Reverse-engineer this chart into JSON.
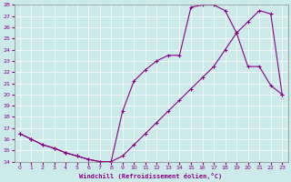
{
  "xlabel": "Windchill (Refroidissement éolien,°C)",
  "bg_color": "#cceaea",
  "line_color": "#880088",
  "xlim": [
    -0.5,
    23.5
  ],
  "ylim": [
    14,
    28
  ],
  "xticks": [
    0,
    1,
    2,
    3,
    4,
    5,
    6,
    7,
    8,
    9,
    10,
    11,
    12,
    13,
    14,
    15,
    16,
    17,
    18,
    19,
    20,
    21,
    22,
    23
  ],
  "yticks": [
    14,
    15,
    16,
    17,
    18,
    19,
    20,
    21,
    22,
    23,
    24,
    25,
    26,
    27,
    28
  ],
  "line1_x": [
    0,
    1,
    2,
    3,
    4,
    5,
    6,
    7,
    8,
    9,
    10,
    11,
    12,
    13,
    14,
    15,
    16,
    17,
    18,
    19,
    20,
    21,
    22,
    23
  ],
  "line1_y": [
    16.5,
    16.0,
    15.5,
    15.2,
    14.8,
    14.5,
    14.2,
    14.0,
    14.0,
    14.5,
    15.5,
    16.5,
    17.5,
    18.5,
    19.5,
    20.5,
    21.5,
    22.5,
    24.0,
    25.5,
    26.5,
    27.5,
    27.2,
    20.0
  ],
  "line2_x": [
    0,
    1,
    2,
    3,
    4,
    5,
    6,
    7,
    8,
    9,
    10,
    11,
    12,
    13,
    14,
    15,
    16,
    17,
    18,
    19,
    20,
    21,
    22,
    23
  ],
  "line2_y": [
    16.5,
    16.0,
    15.5,
    15.2,
    14.8,
    14.5,
    14.2,
    14.0,
    14.0,
    18.5,
    21.2,
    22.2,
    23.0,
    23.5,
    23.5,
    27.8,
    28.0,
    28.0,
    27.5,
    25.5,
    22.5,
    22.5,
    20.8,
    20.0
  ]
}
